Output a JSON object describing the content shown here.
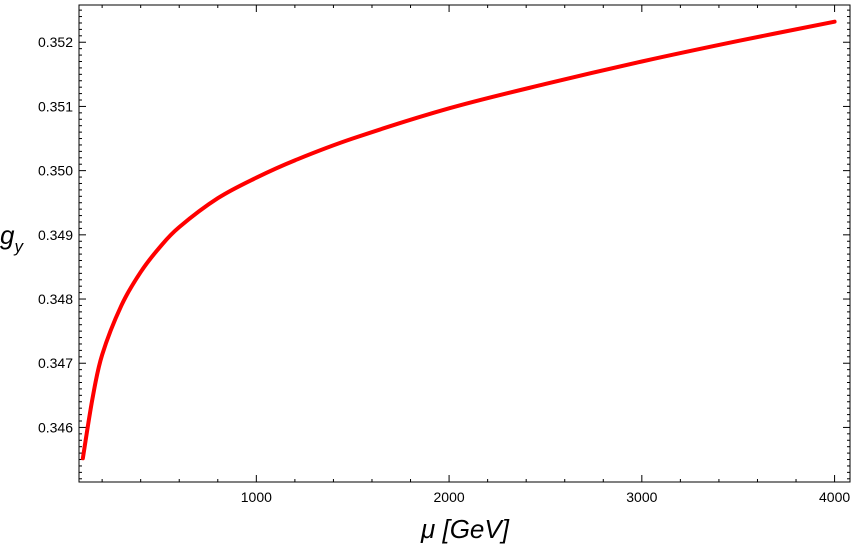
{
  "chart_data": {
    "type": "line",
    "title": "",
    "xlabel": "μ [GeV]",
    "ylabel_main": "g",
    "ylabel_sub": "y",
    "xlim": [
      80,
      4080
    ],
    "ylim": [
      0.34515,
      0.35258
    ],
    "x_ticks": [
      1000,
      2000,
      3000,
      4000
    ],
    "x_tick_labels": [
      "1000",
      "2000",
      "3000",
      "4000"
    ],
    "y_ticks": [
      0.346,
      0.347,
      0.348,
      0.349,
      0.35,
      0.351,
      0.352
    ],
    "y_tick_labels": [
      "0.346",
      "0.347",
      "0.348",
      "0.349",
      "0.350",
      "0.351",
      "0.352"
    ],
    "grid": false,
    "series": [
      {
        "color": "#ff0000",
        "x": [
          100,
          150,
          200,
          300,
          400,
          500,
          600,
          800,
          1000,
          1200,
          1500,
          2000,
          2500,
          3000,
          3500,
          4000
        ],
        "y": [
          0.34552,
          0.34645,
          0.34713,
          0.3479,
          0.34842,
          0.34881,
          0.34912,
          0.34957,
          0.34989,
          0.35016,
          0.3505,
          0.35097,
          0.35135,
          0.3517,
          0.35202,
          0.35232
        ]
      }
    ]
  }
}
